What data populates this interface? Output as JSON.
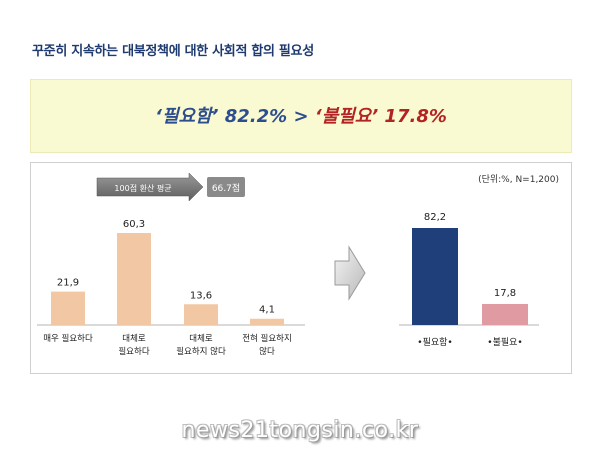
{
  "title": "꾸준히 지속하는 대북정책에 대한 사회적 합의 필요성",
  "headline": {
    "need": "‘필요함’ 82.2%",
    "separator": " > ",
    "noneed": "‘불필요’ 17.8%"
  },
  "unit_note": "(단위:%, N=1,200)",
  "average": {
    "label": "100점 환산 평균",
    "value": "66.7점"
  },
  "watermark": "news21tongsin.co.kr",
  "colors": {
    "left_bars": "#f2c8a4",
    "need": "#1f3f7a",
    "noneed": "#e09aa2",
    "banner": "#fafad2"
  },
  "chart_data": [
    {
      "type": "bar",
      "categories": [
        "매우 필요하다",
        "대체로 필요하다",
        "대체로 필요하지 않다",
        "전혀 필요하지 않다"
      ],
      "category_lines": [
        [
          "매우 필요하다"
        ],
        [
          "대체로",
          "필요하다"
        ],
        [
          "대체로",
          "필요하지 않다"
        ],
        [
          "전혀 필요하지",
          "않다"
        ]
      ],
      "values": [
        21.9,
        60.3,
        13.6,
        4.1
      ],
      "value_labels": [
        "21,9",
        "60,3",
        "13,6",
        "4,1"
      ],
      "ylim": [
        0,
        60.3
      ],
      "grid": false
    },
    {
      "type": "bar",
      "categories": [
        "•필요함•",
        "•불필요•"
      ],
      "values": [
        82.2,
        17.8
      ],
      "value_labels": [
        "82,2",
        "17,8"
      ],
      "ylim": [
        0,
        82.2
      ],
      "grid": false
    }
  ]
}
